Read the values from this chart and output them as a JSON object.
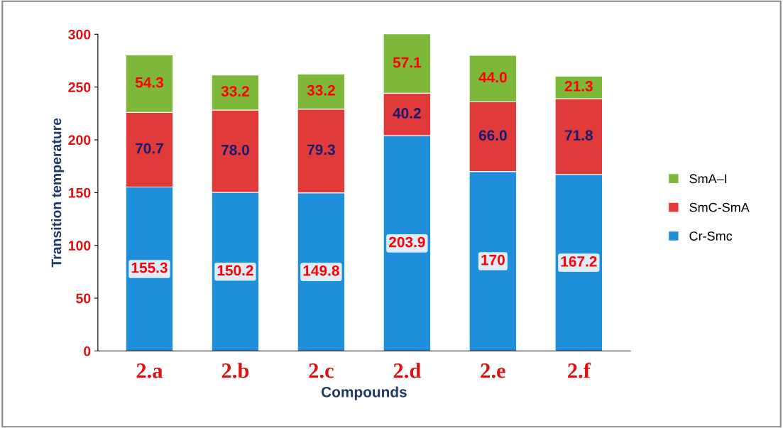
{
  "chart_data": {
    "type": "bar",
    "stacked": true,
    "xlabel": "Compounds",
    "ylabel": "Transition temperature",
    "categories": [
      "2.a",
      "2.b",
      "2.c",
      "2.d",
      "2.e",
      "2.f"
    ],
    "series": [
      {
        "name": "Cr-Smc",
        "color": "#1f8fdc",
        "values": [
          155.3,
          150.2,
          149.8,
          203.9,
          170,
          167.2
        ],
        "value_labels": [
          "155.3",
          "150.2",
          "149.8",
          "203.9",
          "170",
          "167.2"
        ]
      },
      {
        "name": "SmC-SmA",
        "color": "#e03a3a",
        "values": [
          70.7,
          78.0,
          79.3,
          40.2,
          66.0,
          71.8
        ],
        "value_labels": [
          "70.7",
          "78.0",
          "79.3",
          "40.2",
          "66.0",
          "71.8"
        ]
      },
      {
        "name": "SmA–I",
        "color": "#7db83a",
        "values": [
          54.3,
          33.2,
          33.2,
          57.1,
          44.0,
          21.3
        ],
        "value_labels": [
          "54.3",
          "33.2",
          "33.2",
          "57.1",
          "44.0",
          "21.3"
        ]
      }
    ],
    "ylim": [
      0,
      300
    ],
    "yticks": [
      0,
      50,
      100,
      150,
      200,
      250,
      300
    ],
    "grid": false,
    "legend": "right"
  }
}
